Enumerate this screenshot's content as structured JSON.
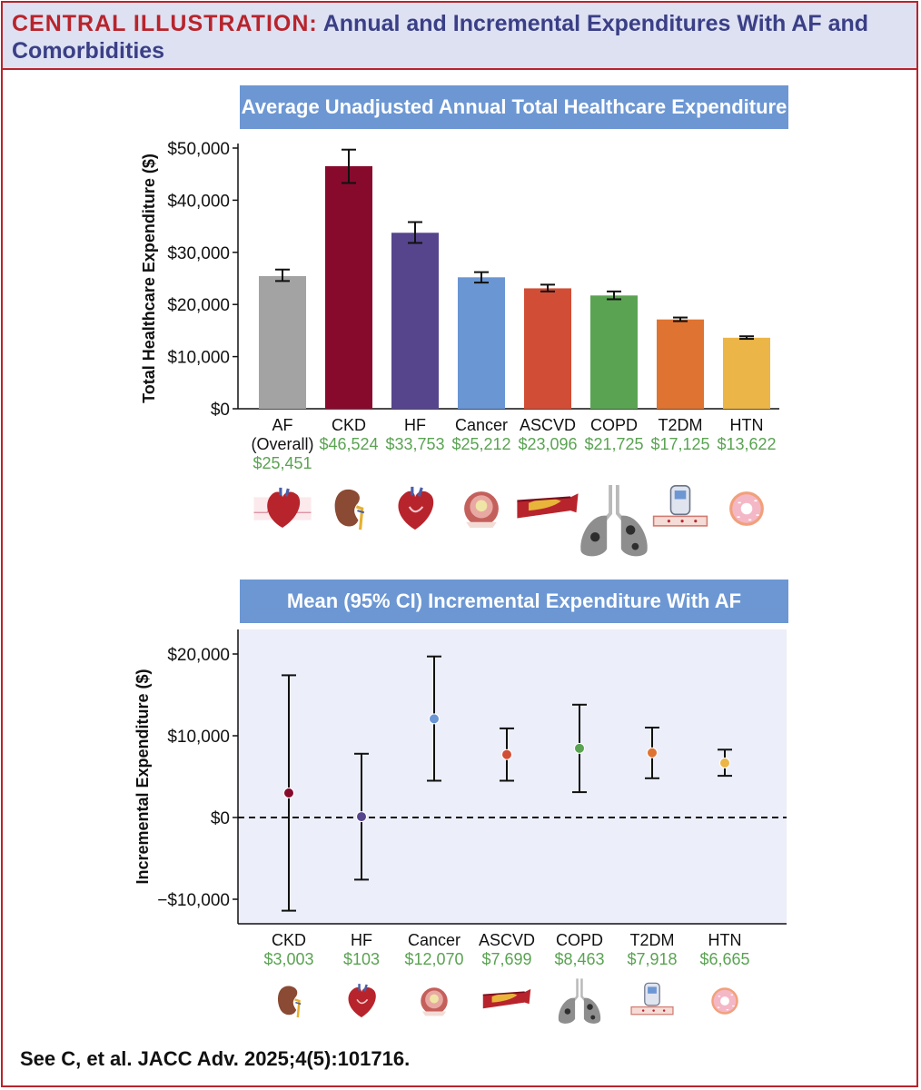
{
  "header": {
    "lead": "CENTRAL ILLUSTRATION:",
    "title": "Annual and Incremental Expenditures With AF and Comorbidities"
  },
  "colors": {
    "accent_red": "#b8242c",
    "header_bg": "#dde1f2",
    "title_blue": "#3a3f86",
    "panel_title_bg": "#6c97d3",
    "plot_bg": "#eceff9",
    "value_green": "#5aa352"
  },
  "chart_data": [
    {
      "type": "bar",
      "title": "Average Unadjusted Annual Total Healthcare Expenditure",
      "xlabel": "",
      "ylabel": "Total Healthcare Expenditure ($)",
      "ylim": [
        0,
        50000
      ],
      "yticks": [
        {
          "value": 0,
          "label": "$0"
        },
        {
          "value": 10000,
          "label": "$10,000"
        },
        {
          "value": 20000,
          "label": "$20,000"
        },
        {
          "value": 30000,
          "label": "$30,000"
        },
        {
          "value": 40000,
          "label": "$40,000"
        },
        {
          "value": 50000,
          "label": "$50,000"
        }
      ],
      "categories": [
        {
          "lines": [
            "AF",
            "(Overall)"
          ],
          "value_label": "$25,451",
          "value": 25451,
          "err_low": 24500,
          "err_high": 26700,
          "color": "#a3a3a3"
        },
        {
          "lines": [
            "CKD"
          ],
          "value_label": "$46,524",
          "value": 46524,
          "err_low": 43300,
          "err_high": 49700,
          "color": "#870a2d"
        },
        {
          "lines": [
            "HF"
          ],
          "value_label": "$33,753",
          "value": 33753,
          "err_low": 31800,
          "err_high": 35800,
          "color": "#56458d"
        },
        {
          "lines": [
            "Cancer"
          ],
          "value_label": "$25,212",
          "value": 25212,
          "err_low": 24200,
          "err_high": 26200,
          "color": "#6a96d3"
        },
        {
          "lines": [
            "ASCVD"
          ],
          "value_label": "$23,096",
          "value": 23096,
          "err_low": 22500,
          "err_high": 23800,
          "color": "#d14d35"
        },
        {
          "lines": [
            "COPD"
          ],
          "value_label": "$21,725",
          "value": 21725,
          "err_low": 21000,
          "err_high": 22500,
          "color": "#5aa352"
        },
        {
          "lines": [
            "T2DM"
          ],
          "value_label": "$17,125",
          "value": 17125,
          "err_low": 16800,
          "err_high": 17500,
          "color": "#df7331"
        },
        {
          "lines": [
            "HTN"
          ],
          "value_label": "$13,622",
          "value": 13622,
          "err_low": 13400,
          "err_high": 13900,
          "color": "#ecb547"
        }
      ]
    },
    {
      "type": "scatter",
      "title": "Mean (95% CI) Incremental Expenditure With AF",
      "xlabel": "",
      "ylabel": "Incremental Expenditure ($)",
      "ylim": [
        -13000,
        23000
      ],
      "reference_line": 0,
      "yticks": [
        {
          "value": -10000,
          "label": "−$10,000"
        },
        {
          "value": 0,
          "label": "$0"
        },
        {
          "value": 10000,
          "label": "$10,000"
        },
        {
          "value": 20000,
          "label": "$20,000"
        }
      ],
      "points": [
        {
          "label": "CKD",
          "value_label": "$3,003",
          "value": 3003,
          "ci_low": -11400,
          "ci_high": 17400,
          "color": "#870a2d"
        },
        {
          "label": "HF",
          "value_label": "$103",
          "value": 103,
          "ci_low": -7600,
          "ci_high": 7800,
          "color": "#56458d"
        },
        {
          "label": "Cancer",
          "value_label": "$12,070",
          "value": 12070,
          "ci_low": 4500,
          "ci_high": 19700,
          "color": "#6a96d3"
        },
        {
          "label": "ASCVD",
          "value_label": "$7,699",
          "value": 7699,
          "ci_low": 4500,
          "ci_high": 10900,
          "color": "#d14d35"
        },
        {
          "label": "COPD",
          "value_label": "$8,463",
          "value": 8463,
          "ci_low": 3100,
          "ci_high": 13800,
          "color": "#5aa352"
        },
        {
          "label": "T2DM",
          "value_label": "$7,918",
          "value": 7918,
          "ci_low": 4800,
          "ci_high": 11000,
          "color": "#df7331"
        },
        {
          "label": "HTN",
          "value_label": "$6,665",
          "value": 6665,
          "ci_low": 5100,
          "ci_high": 8300,
          "color": "#ecb547"
        }
      ]
    }
  ],
  "icons": {
    "top_row": [
      "heart-ecg-icon",
      "kidney-icon",
      "heart-icon",
      "tumor-icon",
      "artery-plaque-icon",
      "lungs-icon",
      "glucose-meter-icon",
      "donut-icon"
    ],
    "bottom_row": [
      "kidney-icon",
      "heart-icon",
      "tumor-icon",
      "artery-plaque-icon",
      "lungs-icon",
      "glucose-meter-icon",
      "donut-icon"
    ]
  },
  "citation": "See C, et al. JACC Adv. 2025;4(5):101716."
}
